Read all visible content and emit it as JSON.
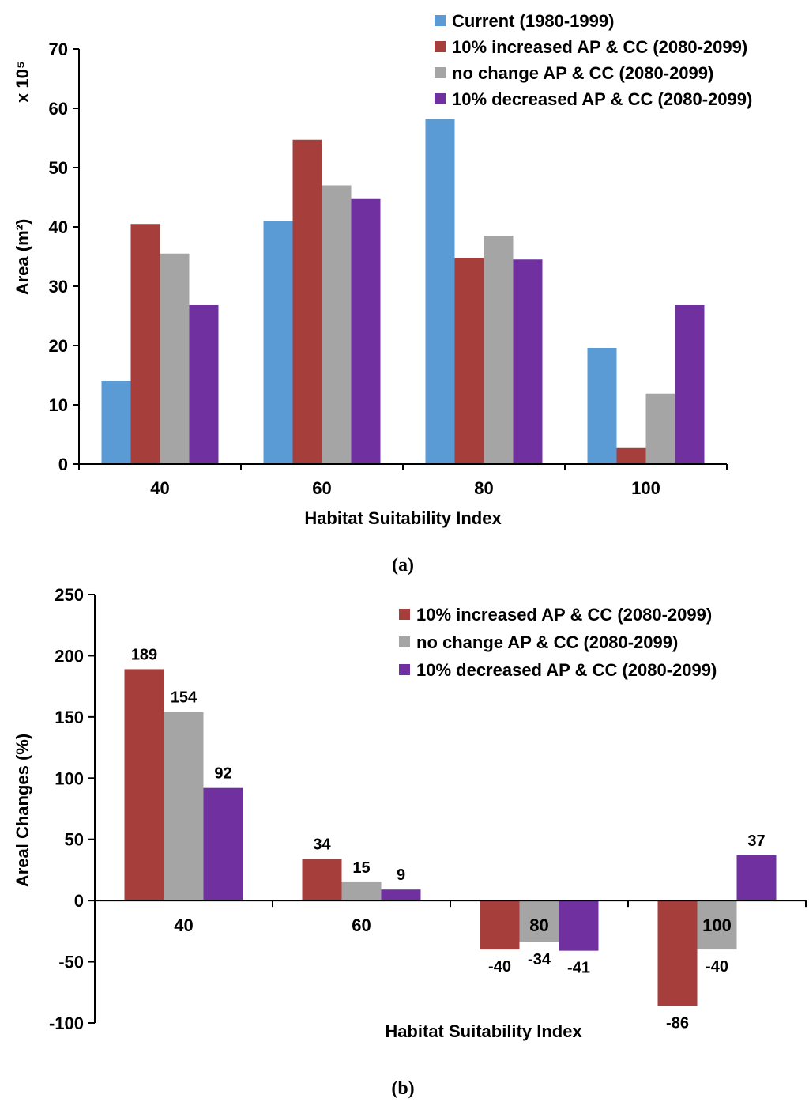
{
  "colors": {
    "current": "#5B9BD5",
    "increased": "#A63E3C",
    "nochange": "#A5A5A5",
    "decreased": "#7030A0"
  },
  "chart_data": [
    {
      "type": "bar",
      "panel_label": "(a)",
      "xlabel": "Habitat Suitability Index",
      "ylabel": "Area (m²)",
      "y_multiplier": "x 10⁵",
      "categories": [
        "40",
        "60",
        "80",
        "100"
      ],
      "ylim": [
        0,
        70
      ],
      "yticks": [
        0,
        10,
        20,
        30,
        40,
        50,
        60,
        70
      ],
      "legend_position": "top-right",
      "grid": false,
      "series": [
        {
          "name": "Current (1980-1999)",
          "color_key": "current",
          "values": [
            14,
            41,
            58.2,
            19.6
          ]
        },
        {
          "name": "10% increased AP & CC (2080-2099)",
          "color_key": "increased",
          "values": [
            40.5,
            54.7,
            34.8,
            2.7
          ]
        },
        {
          "name": "no change AP & CC (2080-2099)",
          "color_key": "nochange",
          "values": [
            35.5,
            47,
            38.5,
            11.9
          ]
        },
        {
          "name": "10% decreased AP & CC (2080-2099)",
          "color_key": "decreased",
          "values": [
            26.8,
            44.7,
            34.5,
            26.8
          ]
        }
      ]
    },
    {
      "type": "bar",
      "panel_label": "(b)",
      "xlabel": "Habitat Suitability Index",
      "ylabel": "Areal Changes (%)",
      "categories": [
        "40",
        "60",
        "80",
        "100"
      ],
      "ylim": [
        -100,
        250
      ],
      "yticks": [
        -100,
        -50,
        0,
        50,
        100,
        150,
        200,
        250
      ],
      "legend_position": "top-right",
      "grid": false,
      "series": [
        {
          "name": "10% increased AP & CC (2080-2099)",
          "color_key": "increased",
          "values": [
            189,
            34,
            -40,
            -86
          ]
        },
        {
          "name": "no change AP & CC (2080-2099)",
          "color_key": "nochange",
          "values": [
            154,
            15,
            -34,
            -40
          ]
        },
        {
          "name": "10% decreased AP & CC (2080-2099)",
          "color_key": "decreased",
          "values": [
            92,
            9,
            -41,
            37
          ]
        }
      ]
    }
  ]
}
